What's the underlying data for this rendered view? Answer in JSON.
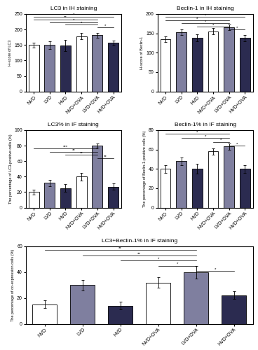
{
  "chart_data": [
    {
      "type": "bar",
      "title": "LC3 in IH staining",
      "y_label": "H-score of LC3",
      "categories": [
        "NVD",
        "LVD",
        "HVD",
        "NVD+OVA",
        "LVD+OVA",
        "HVD+OVA"
      ],
      "values": [
        150,
        150,
        148,
        178,
        182,
        157
      ],
      "errors": [
        8,
        12,
        18,
        10,
        8,
        8
      ],
      "colors": [
        "white",
        "#7f7f9f",
        "#2b2b50",
        "white",
        "#7f7f9f",
        "#2b2b50"
      ],
      "ylim": [
        0,
        250
      ],
      "yticks": [
        0,
        50,
        100,
        150,
        200,
        250
      ],
      "annotations": [
        {
          "from": "NVD",
          "to": "HVD+OVA",
          "y": 242,
          "text": "*"
        },
        {
          "from": "NVD",
          "to": "LVD+OVA",
          "y": 233,
          "text": "**"
        },
        {
          "from": "LVD",
          "to": "LVD+OVA",
          "y": 224,
          "text": "*"
        },
        {
          "from": "HVD",
          "to": "LVD+OVA",
          "y": 215,
          "text": "*"
        },
        {
          "from": "LVD+OVA",
          "to": "HVD+OVA",
          "y": 206,
          "text": "*"
        }
      ]
    },
    {
      "type": "bar",
      "title": "Beclin-1 in IH staining",
      "y_label": "H-score of Beclin-1",
      "categories": [
        "NVD",
        "LVD",
        "HVD",
        "NVD+OVA",
        "LVD+OVA",
        "HVD+OVA"
      ],
      "values": [
        135,
        153,
        138,
        155,
        165,
        138
      ],
      "errors": [
        7,
        8,
        9,
        8,
        7,
        8
      ],
      "colors": [
        "white",
        "#7f7f9f",
        "#2b2b50",
        "white",
        "#7f7f9f",
        "#2b2b50"
      ],
      "ylim": [
        0,
        200
      ],
      "yticks": [
        0,
        50,
        100,
        150,
        200
      ],
      "annotations": [
        {
          "from": "NVD",
          "to": "HVD+OVA",
          "y": 192,
          "text": "*"
        },
        {
          "from": "NVD",
          "to": "LVD+OVA",
          "y": 184,
          "text": "*"
        },
        {
          "from": "LVD",
          "to": "LVD+OVA",
          "y": 176,
          "text": "*"
        },
        {
          "from": "HVD",
          "to": "LVD+OVA",
          "y": 168,
          "text": "*"
        },
        {
          "from": "LVD+OVA",
          "to": "HVD+OVA",
          "y": 160,
          "text": "*"
        }
      ]
    },
    {
      "type": "bar",
      "title": "LC3% in IF staining",
      "y_label": "The percentage of LC3-positive cells (%)",
      "categories": [
        "NVD",
        "LVD",
        "HVD",
        "NVD+OVA",
        "LVD+OVA",
        "HVD+OVA"
      ],
      "values": [
        20,
        32,
        25,
        40,
        80,
        27
      ],
      "errors": [
        3,
        4,
        5,
        5,
        3,
        4
      ],
      "colors": [
        "white",
        "#7f7f9f",
        "#2b2b50",
        "white",
        "#7f7f9f",
        "#2b2b50"
      ],
      "ylim": [
        0,
        100
      ],
      "yticks": [
        0,
        20,
        40,
        60,
        80,
        100
      ],
      "annotations": [
        {
          "from": "NVD",
          "to": "LVD+OVA",
          "y": 76,
          "text": "***"
        },
        {
          "from": "LVD",
          "to": "LVD+OVA",
          "y": 72,
          "text": "**"
        },
        {
          "from": "HVD",
          "to": "LVD+OVA",
          "y": 68,
          "text": "**"
        },
        {
          "from": "LVD+OVA",
          "to": "HVD+OVA",
          "y": 64,
          "text": "**"
        }
      ]
    },
    {
      "type": "bar",
      "title": "Beclin-1% in IF staining",
      "y_label": "The percentage of Beclin-1-positive cells (%)",
      "categories": [
        "NVD",
        "LVD",
        "HVD",
        "NVD+OVA",
        "LVD+OVA",
        "HVD+OVA"
      ],
      "values": [
        40,
        48,
        40,
        58,
        63,
        40
      ],
      "errors": [
        4,
        4,
        5,
        3,
        3,
        4
      ],
      "colors": [
        "white",
        "#7f7f9f",
        "#2b2b50",
        "white",
        "#7f7f9f",
        "#2b2b50"
      ],
      "ylim": [
        0,
        80
      ],
      "yticks": [
        0,
        20,
        40,
        60,
        80
      ],
      "annotations": [
        {
          "from": "NVD",
          "to": "LVD+OVA",
          "y": 76,
          "text": "*"
        },
        {
          "from": "LVD",
          "to": "LVD+OVA",
          "y": 72,
          "text": "*"
        },
        {
          "from": "NVD+OVA",
          "to": "LVD+OVA",
          "y": 68,
          "text": "*"
        },
        {
          "from": "LVD+OVA",
          "to": "HVD+OVA",
          "y": 64,
          "text": "*"
        }
      ]
    },
    {
      "type": "bar",
      "title": "LC3+Beclin-1% in IF staining",
      "y_label": "The percentage of co-expression cells (%)",
      "categories": [
        "NVD",
        "LVD",
        "HVD",
        "NVD+OVA",
        "LVD+OVA",
        "HVD+OVA"
      ],
      "values": [
        15,
        30,
        14,
        32,
        40,
        22
      ],
      "errors": [
        3,
        4,
        3,
        4,
        5,
        3
      ],
      "colors": [
        "white",
        "#7f7f9f",
        "#2b2b50",
        "white",
        "#7f7f9f",
        "#2b2b50"
      ],
      "ylim": [
        0,
        60
      ],
      "yticks": [
        0,
        20,
        40,
        60
      ],
      "annotations": [
        {
          "from": "NVD",
          "to": "LVD+OVA",
          "y": 57,
          "text": "**"
        },
        {
          "from": "LVD",
          "to": "LVD+OVA",
          "y": 53,
          "text": "**"
        },
        {
          "from": "HVD",
          "to": "LVD+OVA",
          "y": 49,
          "text": "*"
        },
        {
          "from": "NVD+OVA",
          "to": "LVD+OVA",
          "y": 45,
          "text": "*"
        },
        {
          "from": "LVD+OVA",
          "to": "HVD+OVA",
          "y": 41,
          "text": "*"
        }
      ]
    }
  ]
}
